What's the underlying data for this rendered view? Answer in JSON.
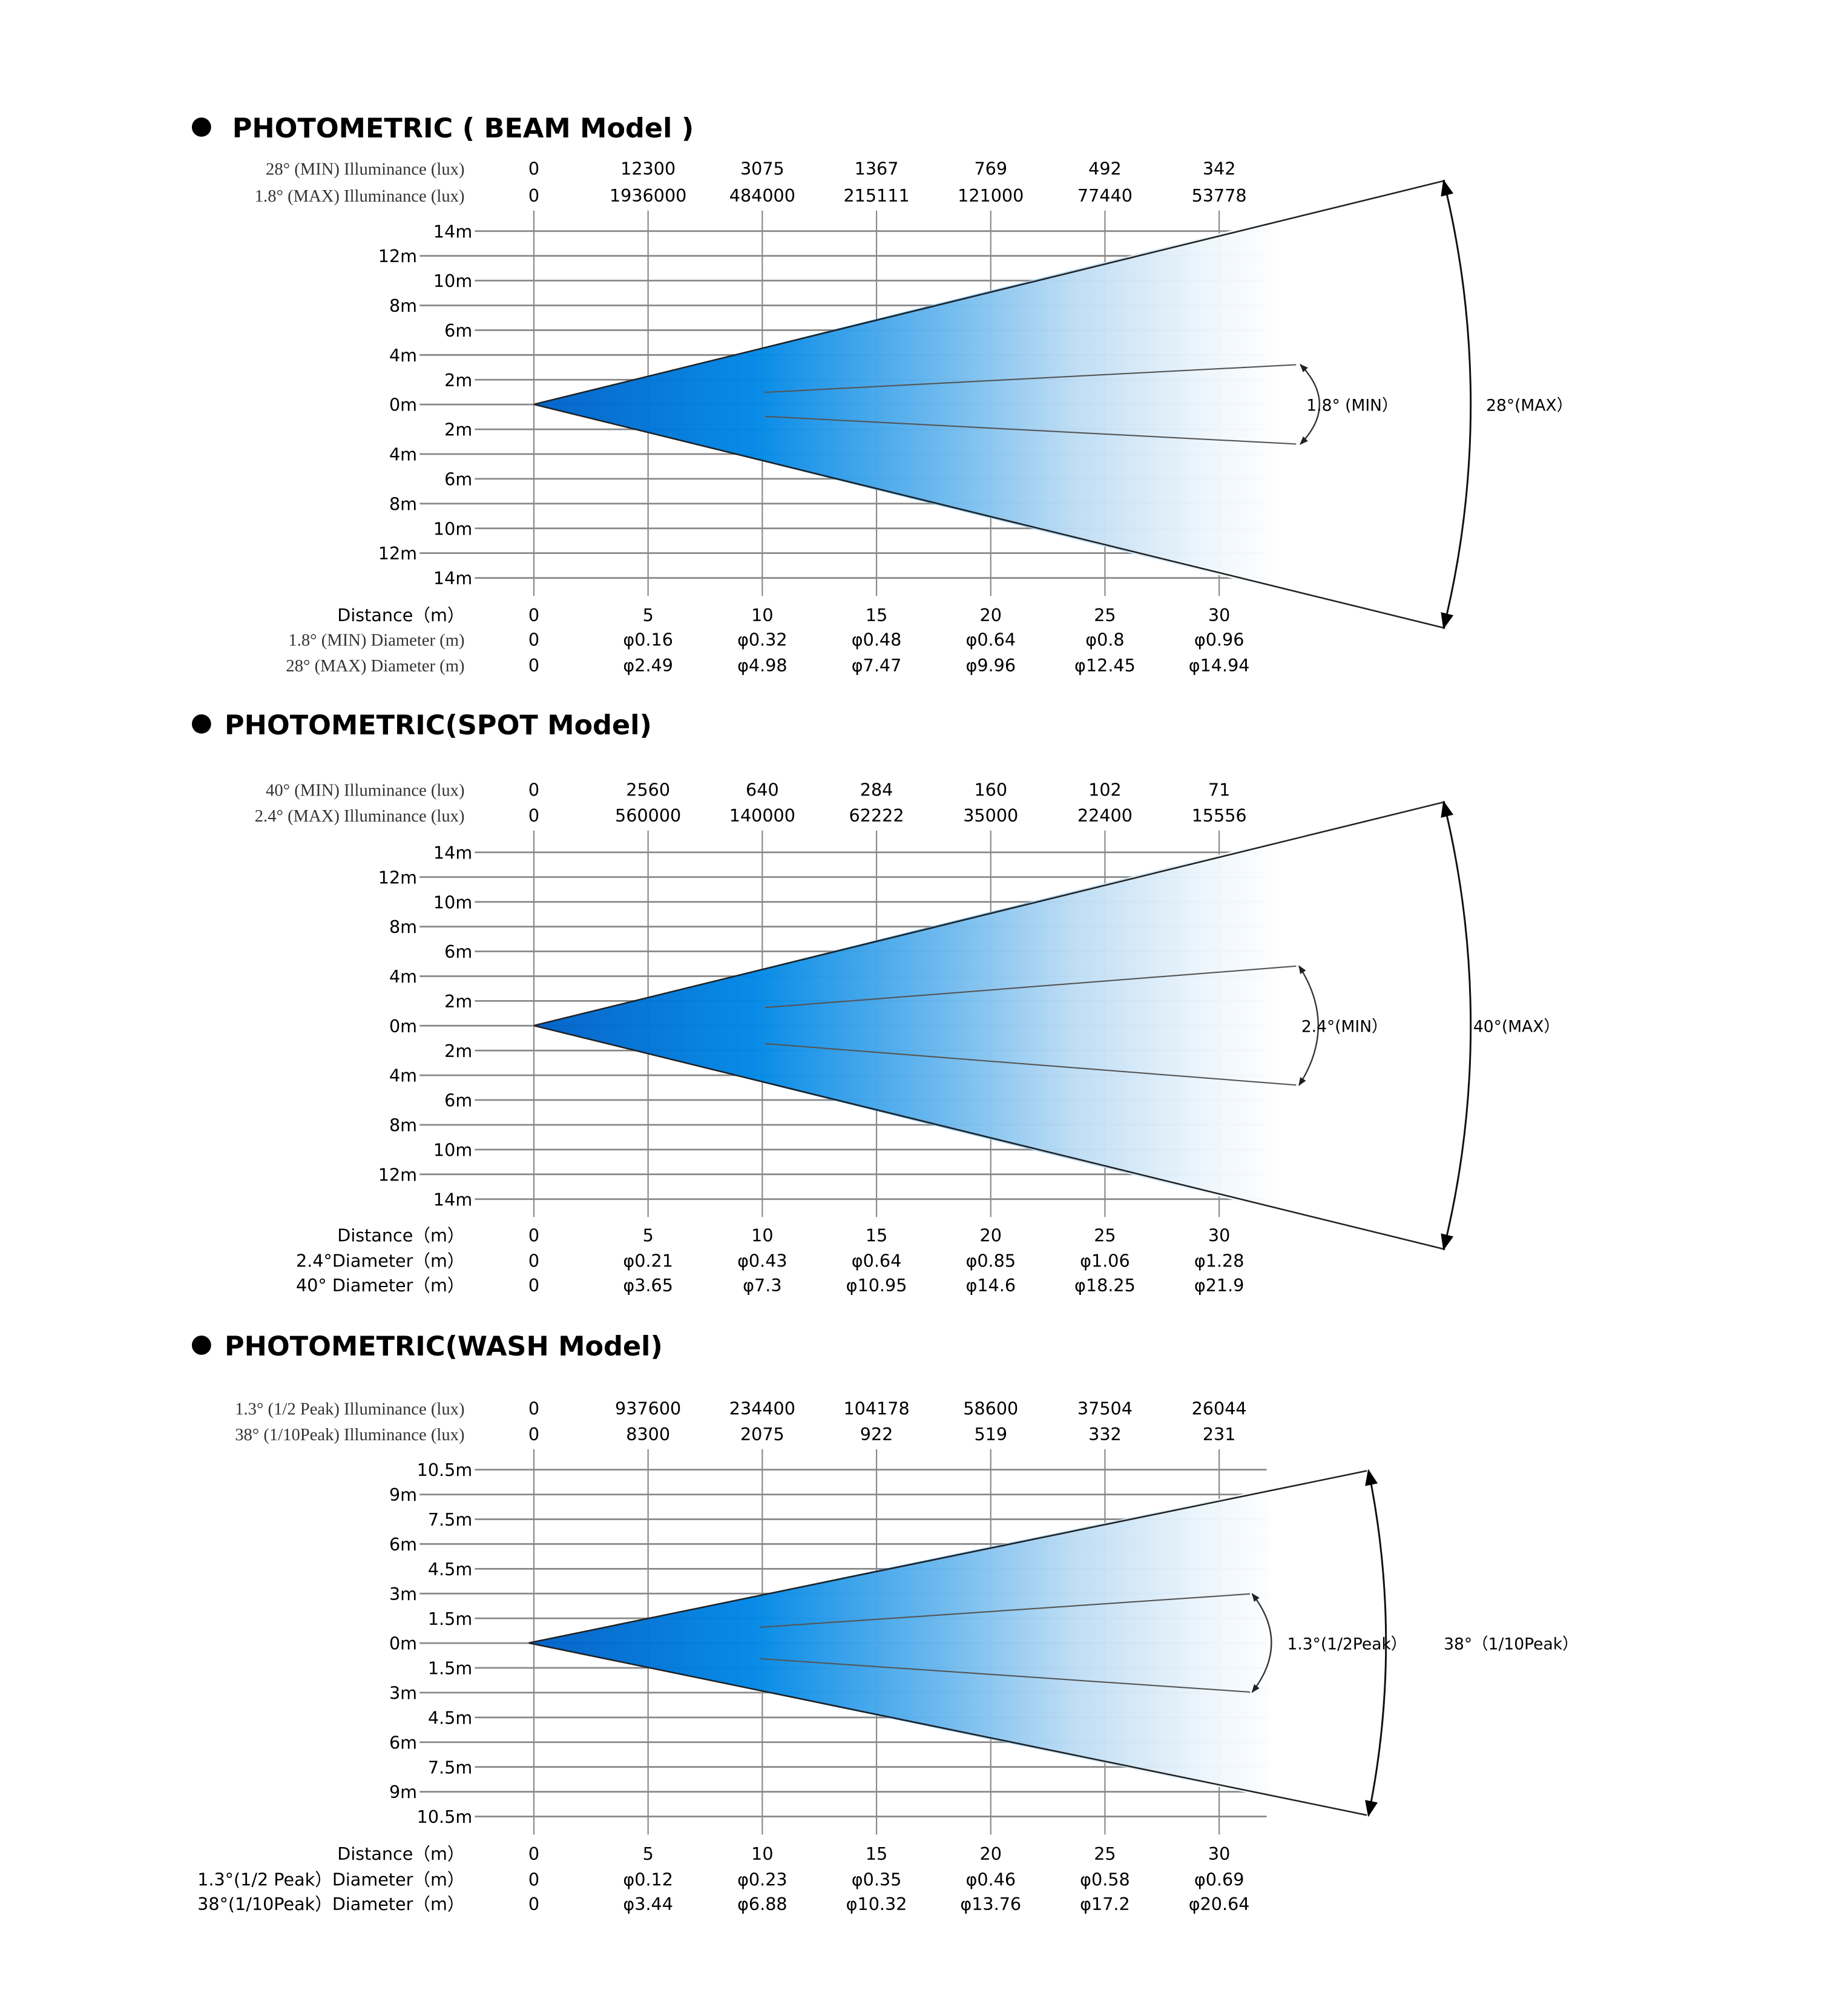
{
  "sections": [
    {
      "title": "PHOTOMETRIC ( BEAM  Model )",
      "illuminance_rows": [
        {
          "label": "28°  (MIN) Illuminance (lux)",
          "values": [
            "0",
            "12300",
            "3075",
            "1367",
            "769",
            "492",
            "342"
          ]
        },
        {
          "label": "1.8° (MAX)  Illuminance (lux)",
          "values": [
            "0",
            "1936000",
            "484000",
            "215111",
            "121000",
            "77440",
            "53778"
          ]
        }
      ],
      "y_axis_labels": [
        "14m",
        "12m",
        "10m",
        "8m",
        "6m",
        "4m",
        "2m",
        "0m",
        "2m",
        "4m",
        "6m",
        "8m",
        "10m",
        "12m",
        "14m"
      ],
      "distance_row": {
        "label": "Distance（m）",
        "values": [
          "0",
          "5",
          "10",
          "15",
          "20",
          "25",
          "30"
        ]
      },
      "diameter_rows": [
        {
          "label": "1.8° (MIN) Diameter (m)",
          "values": [
            "0",
            "φ0.16",
            "φ0.32",
            "φ0.48",
            "φ0.64",
            "φ0.8",
            "φ0.96"
          ]
        },
        {
          "label": "28° (MAX) Diameter (m)",
          "values": [
            "0",
            "φ2.49",
            "φ4.98",
            "φ7.47",
            "φ9.96",
            "φ12.45",
            "φ14.94"
          ]
        }
      ],
      "inner_angle_label": "1.8° (MIN）",
      "outer_angle_label": "28°(MAX）"
    },
    {
      "title": "PHOTOMETRIC(SPOT  Model)",
      "illuminance_rows": [
        {
          "label": "40° (MIN)  Illuminance (lux)",
          "values": [
            "0",
            "2560",
            "640",
            "284",
            "160",
            "102",
            "71"
          ]
        },
        {
          "label": "2.4° (MAX)  Illuminance (lux)",
          "values": [
            "0",
            "560000",
            "140000",
            "62222",
            "35000",
            "22400",
            "15556"
          ]
        }
      ],
      "y_axis_labels": [
        "14m",
        "12m",
        "10m",
        "8m",
        "6m",
        "4m",
        "2m",
        "0m",
        "2m",
        "4m",
        "6m",
        "8m",
        "10m",
        "12m",
        "14m"
      ],
      "distance_row": {
        "label": "Distance（m）",
        "values": [
          "0",
          "5",
          "10",
          "15",
          "20",
          "25",
          "30"
        ]
      },
      "diameter_rows": [
        {
          "label": "2.4°Diameter（m）",
          "values": [
            "0",
            "φ0.21",
            "φ0.43",
            "φ0.64",
            "φ0.85",
            "φ1.06",
            "φ1.28"
          ]
        },
        {
          "label": "40° Diameter（m）",
          "values": [
            "0",
            "φ3.65",
            "φ7.3",
            "φ10.95",
            "φ14.6",
            "φ18.25",
            "φ21.9"
          ]
        }
      ],
      "inner_angle_label": "2.4°(MIN）",
      "outer_angle_label": "40°(MAX）"
    },
    {
      "title": "PHOTOMETRIC(WASH  Model)",
      "illuminance_rows": [
        {
          "label": "1.3° (1/2 Peak)  Illuminance (lux)",
          "values": [
            "0",
            "937600",
            "234400",
            "104178",
            "58600",
            "37504",
            "26044"
          ]
        },
        {
          "label": "38° (1/10Peak)  Illuminance (lux)",
          "values": [
            "0",
            "8300",
            "2075",
            "922",
            "519",
            "332",
            "231"
          ]
        }
      ],
      "y_axis_labels": [
        "10.5m",
        "9m",
        "7.5m",
        "6m",
        "4.5m",
        "3m",
        "1.5m",
        "0m",
        "1.5m",
        "3m",
        "4.5m",
        "6m",
        "7.5m",
        "9m",
        "10.5m"
      ],
      "distance_row": {
        "label": "Distance（m）",
        "values": [
          "0",
          "5",
          "10",
          "15",
          "20",
          "25",
          "30"
        ]
      },
      "diameter_rows": [
        {
          "label": "1.3°(1/2 Peak）Diameter（m）",
          "values": [
            "0",
            "φ0.12",
            "φ0.23",
            "φ0.35",
            "φ0.46",
            "φ0.58",
            "φ0.69"
          ]
        },
        {
          "label": "38°(1/10Peak）Diameter（m）",
          "values": [
            "0",
            "φ3.44",
            "φ6.88",
            "φ10.32",
            "φ13.76",
            "φ17.2",
            "φ20.64"
          ]
        }
      ],
      "inner_angle_label": "1.3°(1/2Peak）",
      "outer_angle_label": "38°（1/10Peak）"
    }
  ],
  "colors": {
    "beam_dark": "#005fc6",
    "beam_mid": "#0088e6",
    "beam_light": "#bcdcf4",
    "beam_fade": "#f6fafe",
    "grid": "#888888",
    "text": "#000000"
  },
  "chart_data": [
    {
      "type": "table",
      "title": "PHOTOMETRIC ( BEAM  Model )",
      "xlabel": "Distance (m)",
      "x": [
        0,
        5,
        10,
        15,
        20,
        25,
        30
      ],
      "ylim": [
        -14,
        14
      ],
      "y_ticks": [
        "14m",
        "12m",
        "10m",
        "8m",
        "6m",
        "4m",
        "2m",
        "0m",
        "2m",
        "4m",
        "6m",
        "8m",
        "10m",
        "12m",
        "14m"
      ],
      "series": [
        {
          "name": "28° (MIN) Illuminance (lux)",
          "values": [
            0,
            12300,
            3075,
            1367,
            769,
            492,
            342
          ]
        },
        {
          "name": "1.8° (MAX) Illuminance (lux)",
          "values": [
            0,
            1936000,
            484000,
            215111,
            121000,
            77440,
            53778
          ]
        },
        {
          "name": "1.8° (MIN) Diameter (m)",
          "values": [
            0,
            0.16,
            0.32,
            0.48,
            0.64,
            0.8,
            0.96
          ]
        },
        {
          "name": "28° (MAX) Diameter (m)",
          "values": [
            0,
            2.49,
            4.98,
            7.47,
            9.96,
            12.45,
            14.94
          ]
        }
      ],
      "annotations": [
        "1.8° (MIN)",
        "28°(MAX)"
      ]
    },
    {
      "type": "table",
      "title": "PHOTOMETRIC(SPOT  Model)",
      "xlabel": "Distance (m)",
      "x": [
        0,
        5,
        10,
        15,
        20,
        25,
        30
      ],
      "ylim": [
        -14,
        14
      ],
      "y_ticks": [
        "14m",
        "12m",
        "10m",
        "8m",
        "6m",
        "4m",
        "2m",
        "0m",
        "2m",
        "4m",
        "6m",
        "8m",
        "10m",
        "12m",
        "14m"
      ],
      "series": [
        {
          "name": "40° (MIN) Illuminance (lux)",
          "values": [
            0,
            2560,
            640,
            284,
            160,
            102,
            71
          ]
        },
        {
          "name": "2.4° (MAX) Illuminance (lux)",
          "values": [
            0,
            560000,
            140000,
            62222,
            35000,
            22400,
            15556
          ]
        },
        {
          "name": "2.4° Diameter (m)",
          "values": [
            0,
            0.21,
            0.43,
            0.64,
            0.85,
            1.06,
            1.28
          ]
        },
        {
          "name": "40° Diameter (m)",
          "values": [
            0,
            3.65,
            7.3,
            10.95,
            14.6,
            18.25,
            21.9
          ]
        }
      ],
      "annotations": [
        "2.4°(MIN)",
        "40°(MAX)"
      ]
    },
    {
      "type": "table",
      "title": "PHOTOMETRIC(WASH  Model)",
      "xlabel": "Distance (m)",
      "x": [
        0,
        5,
        10,
        15,
        20,
        25,
        30
      ],
      "ylim": [
        -10.5,
        10.5
      ],
      "y_ticks": [
        "10.5m",
        "9m",
        "7.5m",
        "6m",
        "4.5m",
        "3m",
        "1.5m",
        "0m",
        "1.5m",
        "3m",
        "4.5m",
        "6m",
        "7.5m",
        "9m",
        "10.5m"
      ],
      "series": [
        {
          "name": "1.3° (1/2 Peak) Illuminance (lux)",
          "values": [
            0,
            937600,
            234400,
            104178,
            58600,
            37504,
            26044
          ]
        },
        {
          "name": "38° (1/10Peak) Illuminance (lux)",
          "values": [
            0,
            8300,
            2075,
            922,
            519,
            332,
            231
          ]
        },
        {
          "name": "1.3°(1/2 Peak) Diameter (m)",
          "values": [
            0,
            0.12,
            0.23,
            0.35,
            0.46,
            0.58,
            0.69
          ]
        },
        {
          "name": "38°(1/10Peak) Diameter (m)",
          "values": [
            0,
            3.44,
            6.88,
            10.32,
            13.76,
            17.2,
            20.64
          ]
        }
      ],
      "annotations": [
        "1.3°(1/2Peak)",
        "38° (1/10Peak)"
      ]
    }
  ]
}
